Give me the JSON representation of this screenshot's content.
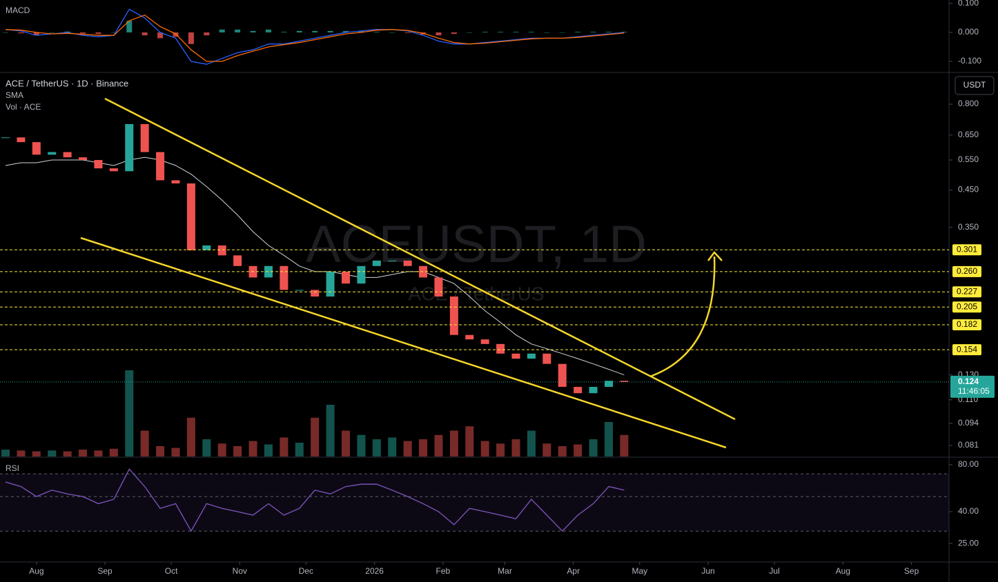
{
  "chart_data": [
    {
      "type": "candlestick",
      "title": "ACE / TetherUS · 1D · Binance",
      "legend": [
        "SMA",
        "Vol · ACE"
      ],
      "watermark": "ACEUSDT, 1D",
      "watermark_subtitle": "ACE / TetherUS",
      "currency": "USDT",
      "log_scale": true,
      "x": [
        -14,
        -7,
        0,
        7,
        14,
        21,
        28,
        35,
        42,
        49,
        56,
        63,
        70,
        77,
        84,
        91,
        98,
        105,
        112,
        119,
        126,
        133,
        140,
        147,
        154,
        161,
        168,
        175,
        182,
        189,
        196,
        203,
        210,
        217,
        224,
        231,
        238,
        245,
        252,
        259,
        266
      ],
      "close": [
        0.64,
        0.62,
        0.57,
        0.58,
        0.56,
        0.55,
        0.52,
        0.51,
        0.7,
        0.58,
        0.48,
        0.47,
        0.3,
        0.31,
        0.29,
        0.27,
        0.25,
        0.27,
        0.23,
        0.23,
        0.22,
        0.26,
        0.24,
        0.27,
        0.28,
        0.28,
        0.27,
        0.25,
        0.22,
        0.17,
        0.165,
        0.16,
        0.15,
        0.145,
        0.15,
        0.14,
        0.12,
        0.115,
        0.12,
        0.125,
        0.124
      ],
      "sma": [
        0.53,
        0.54,
        0.54,
        0.55,
        0.55,
        0.55,
        0.54,
        0.53,
        0.55,
        0.56,
        0.55,
        0.53,
        0.5,
        0.46,
        0.42,
        0.38,
        0.34,
        0.31,
        0.29,
        0.27,
        0.26,
        0.26,
        0.255,
        0.25,
        0.25,
        0.255,
        0.26,
        0.26,
        0.25,
        0.24,
        0.22,
        0.2,
        0.185,
        0.17,
        0.16,
        0.155,
        0.15,
        0.145,
        0.14,
        0.135,
        0.13
      ],
      "volume": [
        8,
        7,
        6,
        7,
        6,
        8,
        7,
        9,
        100,
        30,
        12,
        10,
        45,
        20,
        15,
        12,
        18,
        14,
        22,
        16,
        45,
        60,
        30,
        25,
        20,
        22,
        18,
        20,
        25,
        30,
        35,
        18,
        15,
        20,
        30,
        15,
        12,
        14,
        20,
        40,
        25
      ],
      "up_color": "#26a69a",
      "down_color": "#ef5350",
      "sma_color": "#d1d4dc",
      "xlim": [
        -16.5,
        413
      ],
      "xticks": [
        {
          "value": 0,
          "label": "Aug"
        },
        {
          "value": 31,
          "label": "Sep"
        },
        {
          "value": 61,
          "label": "Oct"
        },
        {
          "value": 92,
          "label": "Nov"
        },
        {
          "value": 122,
          "label": "Dec"
        },
        {
          "value": 153,
          "label": "2026"
        },
        {
          "value": 184,
          "label": "Feb"
        },
        {
          "value": 212,
          "label": "Mar"
        },
        {
          "value": 243,
          "label": "Apr"
        },
        {
          "value": 273,
          "label": "May"
        },
        {
          "value": 304,
          "label": "Jun"
        },
        {
          "value": 334,
          "label": "Jul"
        },
        {
          "value": 365,
          "label": "Aug"
        },
        {
          "value": 396,
          "label": "Sep"
        }
      ],
      "ylim": [
        0.0752,
        0.99
      ],
      "yticks": [
        {
          "value": 0.8,
          "label": "0.800"
        },
        {
          "value": 0.65,
          "label": "0.650"
        },
        {
          "value": 0.55,
          "label": "0.550"
        },
        {
          "value": 0.45,
          "label": "0.450"
        },
        {
          "value": 0.35,
          "label": "0.350"
        },
        {
          "value": 0.13,
          "label": "0.130"
        },
        {
          "value": 0.11,
          "label": "0.110"
        },
        0.094,
        0.081
      ],
      "levels": [
        0.301,
        0.26,
        0.227,
        0.205,
        0.182,
        0.154
      ],
      "level_labels": [
        "0.301",
        "0.260",
        "0.227",
        "0.205",
        "0.182",
        "0.154"
      ],
      "level_color": "#ffeb3b",
      "last_price": 0.124,
      "countdown": "11:46:05"
    },
    {
      "type": "macd",
      "title": "MACD",
      "x": [
        -14,
        -7,
        0,
        7,
        14,
        21,
        28,
        35,
        42,
        49,
        56,
        63,
        70,
        77,
        84,
        91,
        98,
        105,
        112,
        119,
        126,
        133,
        140,
        147,
        154,
        161,
        168,
        175,
        182,
        189,
        196,
        203,
        210,
        217,
        224,
        231,
        238,
        245,
        252,
        259,
        266
      ],
      "macd": [
        0.01,
        0.005,
        -0.01,
        -0.005,
        0.0,
        -0.01,
        -0.015,
        -0.01,
        0.08,
        0.05,
        0.0,
        -0.02,
        -0.1,
        -0.11,
        -0.09,
        -0.07,
        -0.06,
        -0.04,
        -0.04,
        -0.03,
        -0.02,
        -0.01,
        0.0,
        0.005,
        0.01,
        0.01,
        0.005,
        -0.01,
        -0.03,
        -0.04,
        -0.04,
        -0.035,
        -0.03,
        -0.025,
        -0.02,
        -0.02,
        -0.02,
        -0.015,
        -0.01,
        -0.005,
        0.0
      ],
      "signal": [
        0.01,
        0.008,
        0.0,
        -0.005,
        -0.003,
        -0.006,
        -0.01,
        -0.01,
        0.04,
        0.06,
        0.02,
        -0.005,
        -0.06,
        -0.1,
        -0.1,
        -0.08,
        -0.065,
        -0.05,
        -0.042,
        -0.035,
        -0.025,
        -0.015,
        -0.005,
        0.0,
        0.008,
        0.01,
        0.007,
        -0.003,
        -0.02,
        -0.035,
        -0.04,
        -0.037,
        -0.032,
        -0.027,
        -0.022,
        -0.02,
        -0.02,
        -0.017,
        -0.012,
        -0.007,
        -0.002
      ],
      "histogram": [
        0,
        -0.003,
        -0.01,
        0,
        0.003,
        -0.004,
        -0.005,
        0,
        0.04,
        -0.01,
        -0.02,
        -0.015,
        -0.04,
        -0.01,
        0.01,
        0.01,
        0.005,
        0.01,
        0.002,
        0.005,
        0.005,
        0.005,
        0.005,
        0.005,
        0.002,
        0,
        -0.002,
        -0.007,
        -0.01,
        -0.005,
        0,
        0.002,
        0.002,
        0.002,
        0.002,
        0,
        0,
        0.002,
        0.002,
        0.002,
        0.002
      ],
      "macd_color": "#2962ff",
      "signal_color": "#ff6d00",
      "ylim": [
        -0.138,
        0.112
      ],
      "yticks": [
        {
          "value": 0.1,
          "label": "0.100"
        },
        {
          "value": 0,
          "label": "0.000"
        },
        {
          "value": -0.1,
          "label": "-0.100"
        }
      ]
    },
    {
      "type": "rsi",
      "title": "RSI",
      "log_scale": true,
      "x": [
        -14,
        -7,
        0,
        7,
        14,
        21,
        28,
        35,
        42,
        49,
        56,
        63,
        70,
        77,
        84,
        91,
        98,
        105,
        112,
        119,
        126,
        133,
        140,
        147,
        154,
        161,
        168,
        175,
        182,
        189,
        196,
        203,
        210,
        217,
        224,
        231,
        238,
        245,
        252,
        259,
        266
      ],
      "values": [
        62,
        58,
        50,
        55,
        52,
        50,
        45,
        48,
        75,
        58,
        42,
        45,
        30,
        45,
        42,
        40,
        38,
        45,
        38,
        42,
        55,
        52,
        58,
        60,
        60,
        55,
        50,
        45,
        40,
        33,
        42,
        40,
        38,
        36,
        48,
        38,
        30,
        38,
        45,
        58,
        55
      ],
      "color": "#7e57c2",
      "bands": [
        30,
        50,
        70
      ],
      "ylim": [
        19,
        87.7
      ],
      "yticks": [
        {
          "value": 80,
          "label": "80.00"
        },
        {
          "value": 40,
          "label": "40.00"
        },
        {
          "value": 25,
          "label": "25.00"
        }
      ]
    }
  ]
}
